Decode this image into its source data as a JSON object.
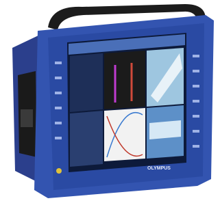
{
  "brand": "OLYMPUS"
}
